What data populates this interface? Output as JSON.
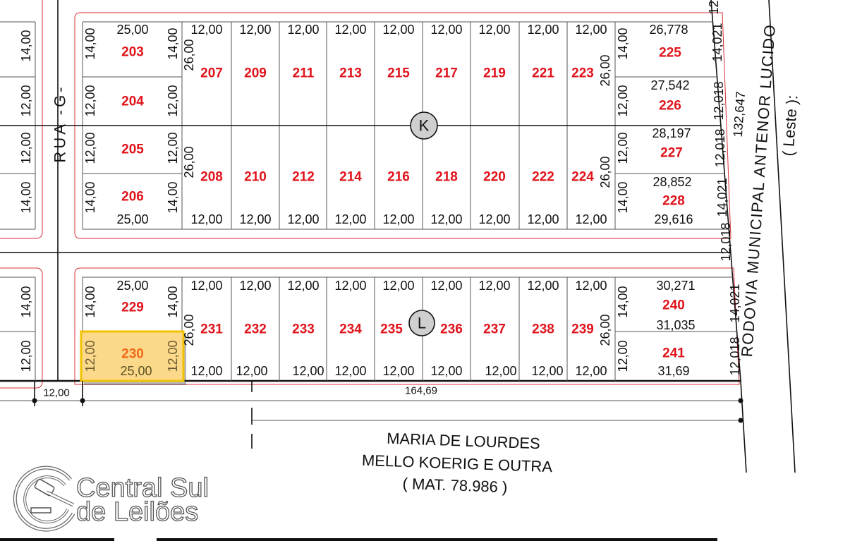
{
  "street_left": "RUA -G-",
  "road_right": "RODOVIA MUNICIPAL ANTENOR LUCIDO",
  "road_side": "( Leste ):",
  "road_length": "132,647",
  "owner": {
    "line1": "MARIA DE LOURDES",
    "line2": "MELLO KOERIG E OUTRA",
    "line3": "( MAT. 78.986 )"
  },
  "logo": {
    "line1": "Central Sul",
    "line2": "de Leilões"
  },
  "colors": {
    "lot_number": "#e0141c",
    "highlight_fill": "#fcd98a",
    "highlight_border": "#f2c200",
    "highlight_number": "#f06a1a",
    "block_outline": "#d8303a"
  },
  "left_block": {
    "side_dims": [
      "14,00",
      "12,00",
      "12,00",
      "14,00",
      "14,00",
      "12,00"
    ]
  },
  "block_k": {
    "label": "K",
    "lots": [
      "203",
      "204",
      "205",
      "206",
      "207",
      "209",
      "211",
      "213",
      "215",
      "217",
      "219",
      "221",
      "223",
      "208",
      "210",
      "212",
      "214",
      "216",
      "218",
      "220",
      "222",
      "224",
      "225",
      "226",
      "227",
      "228"
    ],
    "top_dims": [
      "25,00",
      "12,00",
      "12,00",
      "12,00",
      "12,00",
      "12,00",
      "12,00",
      "12,00",
      "12,00",
      "12,00",
      "26,778"
    ],
    "bottom_dims": [
      "25,00",
      "12,00",
      "12,00",
      "12,00",
      "12,00",
      "12,00",
      "12,00",
      "12,00",
      "12,00",
      "12,00",
      "29,616"
    ],
    "inner_dims": [
      "27,542",
      "28,197",
      "28,852"
    ],
    "col1_left": [
      "14,00",
      "12,00",
      "12,00",
      "14,00"
    ],
    "col1_right": [
      "14,00",
      "12,00",
      "12,00",
      "14,00"
    ],
    "depth": [
      "26,00",
      "26,00",
      "26,00",
      "26,00"
    ],
    "east_left": [
      "14,00",
      "12,00",
      "12,00",
      "14,00"
    ],
    "east_right": [
      "12,",
      "14,021",
      "12,018",
      "12,018",
      "14,021",
      "12,018"
    ]
  },
  "block_l": {
    "label": "L",
    "lots": [
      "229",
      "230",
      "231",
      "232",
      "233",
      "234",
      "235",
      "236",
      "237",
      "238",
      "239",
      "240",
      "241"
    ],
    "selected_lot": "230",
    "top_dims": [
      "25,00",
      "12,00",
      "12,00",
      "12,00",
      "12,00",
      "12,00",
      "12,00",
      "12,00",
      "12,00",
      "12,00",
      "30,271"
    ],
    "bottom_dims": [
      "25,00",
      "12,00",
      "12,00",
      "12,00",
      "12,00",
      "12,00",
      "12,00",
      "12,00",
      "12,00",
      "12,00",
      "31,69"
    ],
    "inner_dims": [
      "31,035"
    ],
    "col1_left": [
      "14,00",
      "12,00"
    ],
    "col1_right": [
      "14,00",
      "12,00"
    ],
    "depth": [
      "26,00",
      "26,00"
    ],
    "east_left": [
      "14,00",
      "12,00"
    ],
    "east_right": [
      "14,021",
      "12,018"
    ]
  },
  "bottom_dims": {
    "street_width": "12,00",
    "total_front": "164,69"
  }
}
